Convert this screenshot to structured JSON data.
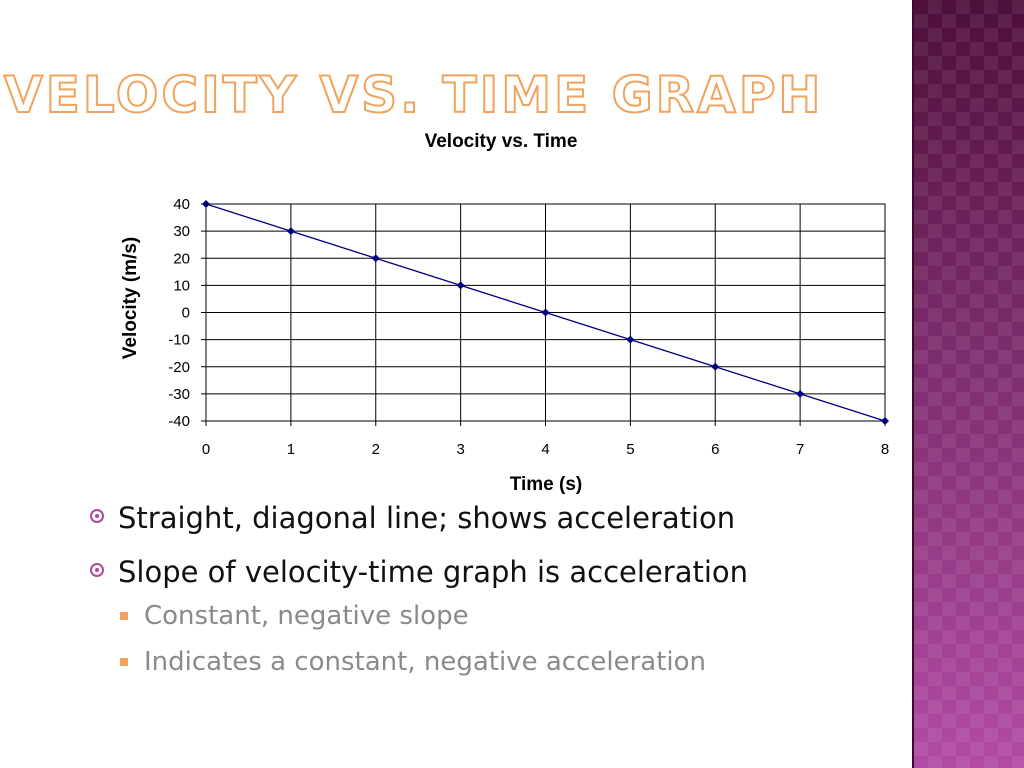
{
  "slide": {
    "title": "Velocity vs. Time Graph",
    "bullets": [
      {
        "text": "Straight, diagonal line; shows acceleration",
        "sub": []
      },
      {
        "text": "Slope of velocity-time graph is acceleration",
        "sub": [
          "Constant, negative slope",
          "Indicates a constant, negative acceleration"
        ]
      }
    ]
  },
  "colors": {
    "title_outline": "#f0a35a",
    "bullet_accent": "#b04a9a",
    "sub_bullet_accent": "#f0a35a",
    "series_line": "#000080",
    "side_panel": "#7a2d6e"
  },
  "chart_data": {
    "type": "line",
    "title": "Velocity vs. Time",
    "xlabel": "Time (s)",
    "ylabel": "Velocity (m/s)",
    "x": [
      0,
      1,
      2,
      3,
      4,
      5,
      6,
      7,
      8
    ],
    "series": [
      {
        "values": [
          40,
          30,
          20,
          10,
          0,
          -10,
          -20,
          -30,
          -40
        ]
      }
    ],
    "xlim": [
      0,
      8
    ],
    "ylim": [
      -40,
      40
    ],
    "xticks": [
      "0",
      "1",
      "2",
      "3",
      "4",
      "5",
      "6",
      "7",
      "8"
    ],
    "yticks": [
      "40",
      "30",
      "20",
      "10",
      "0",
      "-10",
      "-20",
      "-30",
      "-40"
    ],
    "grid": true,
    "marker": "diamond"
  }
}
